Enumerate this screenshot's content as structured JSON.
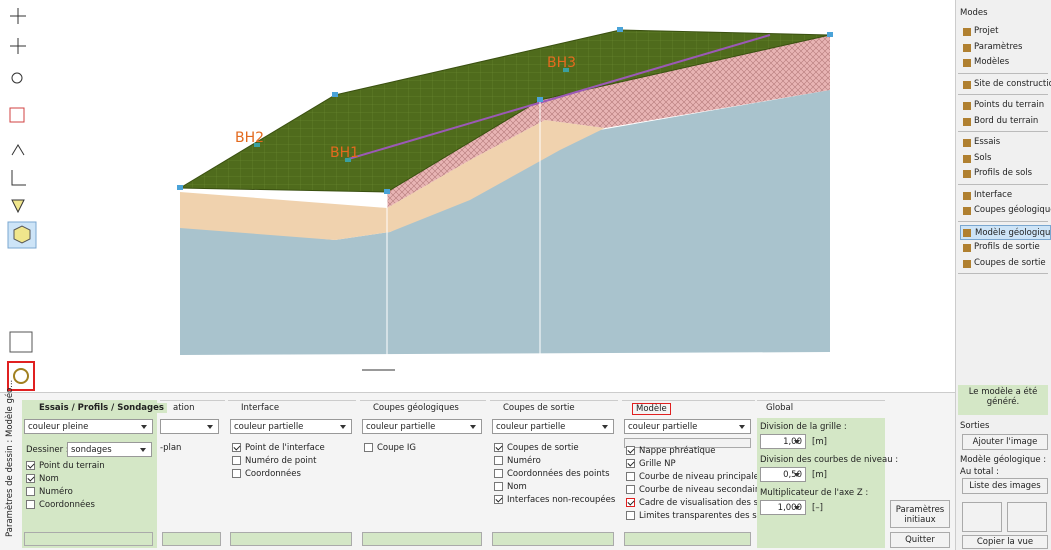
{
  "canvas": {
    "labels": [
      "BH1",
      "BH2",
      "BH3"
    ]
  },
  "right_panel": {
    "title": "Modes",
    "groups": [
      [
        {
          "label": "Projet"
        },
        {
          "label": "Paramètres"
        },
        {
          "label": "Modèles"
        }
      ],
      [
        {
          "label": "Site de construction"
        }
      ],
      [
        {
          "label": "Points du terrain"
        },
        {
          "label": "Bord du terrain"
        }
      ],
      [
        {
          "label": "Essais"
        },
        {
          "label": "Sols"
        },
        {
          "label": "Profils de sols"
        }
      ],
      [
        {
          "label": "Interface"
        },
        {
          "label": "Coupes géologique"
        }
      ],
      [
        {
          "label": "Modèle géologique",
          "selected": true
        },
        {
          "label": "Profils de sortie"
        },
        {
          "label": "Coupes de sortie"
        }
      ]
    ],
    "status": "Le modèle a été généré.",
    "outputs": {
      "title": "Sorties",
      "add_image": "Ajouter l'image",
      "model_label": "Modèle géologique :",
      "total_label": "Au total :",
      "image_list": "Liste des images",
      "copy_view": "Copier la vue"
    }
  },
  "bottom_panel": {
    "side_label": "Paramètres de dessin : Modèle géo...",
    "sections": [
      {
        "title": "Essais / Profils / Sondages",
        "select": "couleur pleine",
        "draw_label": "Dessiner :",
        "draw_select": "sondages",
        "options": [
          {
            "label": "Point du terrain",
            "checked": true
          },
          {
            "label": "Nom",
            "checked": true
          },
          {
            "label": "Numéro",
            "checked": false
          },
          {
            "label": "Coordonnées",
            "checked": false
          }
        ]
      },
      {
        "title": "ation",
        "options": [
          {
            "label": "-plan"
          }
        ]
      },
      {
        "title": "Interface",
        "select": "couleur partielle",
        "options": [
          {
            "label": "Point de l'interface",
            "checked": true
          },
          {
            "label": "Numéro de point",
            "checked": false
          },
          {
            "label": "Coordonnées",
            "checked": false
          }
        ]
      },
      {
        "title": "Coupes géologiques",
        "select": "couleur partielle",
        "options": [
          {
            "label": "Coupe IG",
            "checked": false
          }
        ]
      },
      {
        "title": "Coupes de sortie",
        "select": "couleur partielle",
        "options": [
          {
            "label": "Coupes de sortie",
            "checked": true
          },
          {
            "label": "Numéro",
            "checked": false
          },
          {
            "label": "Coordonnées des points",
            "checked": false
          },
          {
            "label": "Nom",
            "checked": false
          },
          {
            "label": "Interfaces non-recoupées",
            "checked": true
          }
        ]
      },
      {
        "title": "Modèle",
        "select": "couleur partielle",
        "options": [
          {
            "label": "Nappe phréatique",
            "checked": true
          },
          {
            "label": "Grille NP",
            "checked": true
          },
          {
            "label": "Courbe de niveau principale",
            "checked": false
          },
          {
            "label": "Courbe de niveau secondaire",
            "checked": false
          },
          {
            "label": "Cadre de visualisation des sols",
            "checked": true
          },
          {
            "label": "Limites transparentes des sols",
            "checked": false
          }
        ]
      }
    ],
    "global": {
      "title": "Global",
      "fields": [
        {
          "label": "Division de la grille :",
          "value": "1,00",
          "unit": "[m]"
        },
        {
          "label": "Division des courbes de niveau :",
          "value": "0,50",
          "unit": "[m]"
        },
        {
          "label": "Multiplicateur de l'axe Z :",
          "value": "1,000",
          "unit": "[–]"
        }
      ]
    },
    "buttons": {
      "reset": "Paramètres initiaux",
      "quit": "Quitter"
    }
  }
}
